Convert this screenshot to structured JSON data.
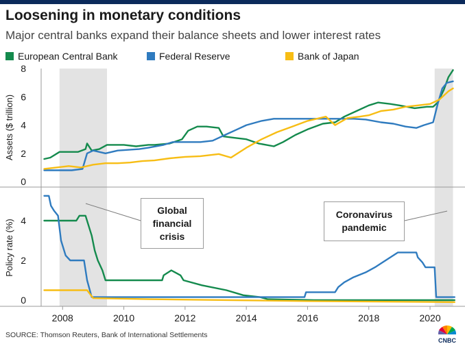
{
  "header": {
    "title": "Loosening in monetary conditions",
    "subtitle": "Major central banks expand their balance sheets and lower interest rates"
  },
  "legend": [
    {
      "name": "European Central Bank",
      "color": "#148a4d"
    },
    {
      "name": "Federal Reserve",
      "color": "#2f7bbf"
    },
    {
      "name": "Bank of Japan",
      "color": "#f7bd14"
    }
  ],
  "footer": {
    "source": "SOURCE: Thomson Reuters, Bank of International Settlements",
    "brand": "CNBC"
  },
  "chart_data": {
    "type": "line",
    "xlim": [
      2007.3,
      2020.85
    ],
    "x_ticks": [
      "2008",
      "2010",
      "2012",
      "2014",
      "2016",
      "2018",
      "2020"
    ],
    "shaded_periods": [
      {
        "label": "Global financial crisis",
        "start": 2007.9,
        "end": 2009.45
      },
      {
        "label": "Coronavirus pandemic",
        "start": 2020.15,
        "end": 2020.75
      }
    ],
    "annotations": [
      {
        "text": "Global\nfinancial\ncrisis",
        "period": "Global financial crisis"
      },
      {
        "text": "Coronavirus\npandemic",
        "period": "Coronavirus pandemic"
      }
    ],
    "panels": [
      {
        "ylabel": "Assets ($ trillion)",
        "ylim": [
          0,
          8
        ],
        "y_ticks": [
          "0",
          "2",
          "4",
          "6",
          "8"
        ],
        "series": [
          {
            "name": "European Central Bank",
            "color": "#148a4d",
            "points": [
              [
                2007.4,
                1.6
              ],
              [
                2007.6,
                1.7
              ],
              [
                2007.9,
                2.1
              ],
              [
                2008.3,
                2.1
              ],
              [
                2008.5,
                2.1
              ],
              [
                2008.75,
                2.3
              ],
              [
                2008.8,
                2.7
              ],
              [
                2008.95,
                2.2
              ],
              [
                2009.2,
                2.3
              ],
              [
                2009.45,
                2.6
              ],
              [
                2010,
                2.6
              ],
              [
                2010.4,
                2.5
              ],
              [
                2010.8,
                2.6
              ],
              [
                2011,
                2.6
              ],
              [
                2011.5,
                2.7
              ],
              [
                2011.9,
                3.0
              ],
              [
                2012.1,
                3.6
              ],
              [
                2012.4,
                3.9
              ],
              [
                2012.7,
                3.9
              ],
              [
                2013.1,
                3.8
              ],
              [
                2013.25,
                3.2
              ],
              [
                2013.6,
                3.1
              ],
              [
                2014,
                3.0
              ],
              [
                2014.4,
                2.7
              ],
              [
                2014.9,
                2.5
              ],
              [
                2015.2,
                2.8
              ],
              [
                2015.6,
                3.3
              ],
              [
                2016,
                3.7
              ],
              [
                2016.5,
                4.1
              ],
              [
                2016.9,
                4.2
              ],
              [
                2017.2,
                4.6
              ],
              [
                2017.6,
                5.0
              ],
              [
                2018,
                5.4
              ],
              [
                2018.3,
                5.6
              ],
              [
                2018.7,
                5.5
              ],
              [
                2019,
                5.4
              ],
              [
                2019.5,
                5.2
              ],
              [
                2019.9,
                5.3
              ],
              [
                2020.1,
                5.3
              ],
              [
                2020.25,
                5.6
              ],
              [
                2020.45,
                6.5
              ],
              [
                2020.6,
                7.4
              ],
              [
                2020.75,
                7.9
              ]
            ]
          },
          {
            "name": "Federal Reserve",
            "color": "#2f7bbf",
            "points": [
              [
                2007.4,
                0.8
              ],
              [
                2007.8,
                0.8
              ],
              [
                2008.3,
                0.8
              ],
              [
                2008.65,
                0.9
              ],
              [
                2008.8,
                2.0
              ],
              [
                2009,
                2.2
              ],
              [
                2009.4,
                2.0
              ],
              [
                2009.8,
                2.2
              ],
              [
                2010.5,
                2.3
              ],
              [
                2010.8,
                2.4
              ],
              [
                2011.3,
                2.6
              ],
              [
                2011.6,
                2.8
              ],
              [
                2012,
                2.8
              ],
              [
                2012.5,
                2.8
              ],
              [
                2012.9,
                2.9
              ],
              [
                2013.3,
                3.3
              ],
              [
                2013.7,
                3.7
              ],
              [
                2014,
                4.0
              ],
              [
                2014.5,
                4.3
              ],
              [
                2014.9,
                4.45
              ],
              [
                2015.5,
                4.45
              ],
              [
                2016,
                4.45
              ],
              [
                2016.5,
                4.45
              ],
              [
                2017,
                4.45
              ],
              [
                2017.5,
                4.45
              ],
              [
                2017.9,
                4.4
              ],
              [
                2018.4,
                4.2
              ],
              [
                2018.8,
                4.1
              ],
              [
                2019.2,
                3.9
              ],
              [
                2019.55,
                3.8
              ],
              [
                2019.8,
                4.0
              ],
              [
                2020.1,
                4.2
              ],
              [
                2020.25,
                5.5
              ],
              [
                2020.4,
                6.6
              ],
              [
                2020.55,
                7.0
              ],
              [
                2020.75,
                7.1
              ]
            ]
          },
          {
            "name": "Bank of Japan",
            "color": "#f7bd14",
            "points": [
              [
                2007.4,
                0.9
              ],
              [
                2007.8,
                1.0
              ],
              [
                2008.2,
                1.1
              ],
              [
                2008.6,
                1.0
              ],
              [
                2009,
                1.2
              ],
              [
                2009.4,
                1.3
              ],
              [
                2009.8,
                1.3
              ],
              [
                2010.2,
                1.35
              ],
              [
                2010.6,
                1.45
              ],
              [
                2011,
                1.5
              ],
              [
                2011.5,
                1.65
              ],
              [
                2012,
                1.75
              ],
              [
                2012.5,
                1.8
              ],
              [
                2013.1,
                1.95
              ],
              [
                2013.5,
                1.7
              ],
              [
                2014,
                2.4
              ],
              [
                2014.5,
                3.0
              ],
              [
                2015,
                3.5
              ],
              [
                2015.5,
                3.9
              ],
              [
                2016,
                4.3
              ],
              [
                2016.3,
                4.45
              ],
              [
                2016.6,
                4.6
              ],
              [
                2016.9,
                4.0
              ],
              [
                2017.3,
                4.5
              ],
              [
                2017.7,
                4.6
              ],
              [
                2018,
                4.7
              ],
              [
                2018.4,
                5.0
              ],
              [
                2018.8,
                5.1
              ],
              [
                2019.2,
                5.3
              ],
              [
                2019.6,
                5.4
              ],
              [
                2020,
                5.5
              ],
              [
                2020.3,
                5.8
              ],
              [
                2020.6,
                6.4
              ],
              [
                2020.75,
                6.6
              ]
            ]
          }
        ]
      },
      {
        "ylabel": "Policy rate (%)",
        "ylim": [
          -0.3,
          5.5
        ],
        "y_ticks": [
          "0",
          "2",
          "4"
        ],
        "series": [
          {
            "name": "European Central Bank",
            "color": "#148a4d",
            "points": [
              [
                2007.4,
                4.0
              ],
              [
                2008.45,
                4.0
              ],
              [
                2008.55,
                4.25
              ],
              [
                2008.75,
                4.25
              ],
              [
                2008.85,
                3.75
              ],
              [
                2008.95,
                3.25
              ],
              [
                2009.05,
                2.5
              ],
              [
                2009.15,
                2.0
              ],
              [
                2009.3,
                1.5
              ],
              [
                2009.4,
                1.0
              ],
              [
                2011.25,
                1.0
              ],
              [
                2011.3,
                1.25
              ],
              [
                2011.55,
                1.5
              ],
              [
                2011.85,
                1.25
              ],
              [
                2011.95,
                1.0
              ],
              [
                2012.55,
                0.75
              ],
              [
                2013.35,
                0.5
              ],
              [
                2013.9,
                0.25
              ],
              [
                2014.45,
                0.15
              ],
              [
                2014.7,
                0.05
              ],
              [
                2016.2,
                0.0
              ],
              [
                2020.8,
                0.0
              ]
            ]
          },
          {
            "name": "Federal Reserve",
            "color": "#2f7bbf",
            "points": [
              [
                2007.4,
                5.25
              ],
              [
                2007.55,
                5.25
              ],
              [
                2007.62,
                4.75
              ],
              [
                2007.72,
                4.5
              ],
              [
                2007.85,
                4.25
              ],
              [
                2007.95,
                3.0
              ],
              [
                2008.1,
                2.25
              ],
              [
                2008.25,
                2.0
              ],
              [
                2008.7,
                2.0
              ],
              [
                2008.8,
                1.0
              ],
              [
                2008.95,
                0.15
              ],
              [
                2015.9,
                0.15
              ],
              [
                2015.95,
                0.4
              ],
              [
                2016.9,
                0.4
              ],
              [
                2017,
                0.65
              ],
              [
                2017.2,
                0.9
              ],
              [
                2017.5,
                1.15
              ],
              [
                2017.9,
                1.4
              ],
              [
                2018.2,
                1.65
              ],
              [
                2018.45,
                1.9
              ],
              [
                2018.7,
                2.15
              ],
              [
                2018.95,
                2.4
              ],
              [
                2019.55,
                2.4
              ],
              [
                2019.6,
                2.15
              ],
              [
                2019.75,
                1.9
              ],
              [
                2019.85,
                1.65
              ],
              [
                2020.15,
                1.65
              ],
              [
                2020.2,
                0.15
              ],
              [
                2020.8,
                0.15
              ]
            ]
          },
          {
            "name": "Bank of Japan",
            "color": "#f7bd14",
            "points": [
              [
                2007.4,
                0.5
              ],
              [
                2008.8,
                0.5
              ],
              [
                2008.9,
                0.3
              ],
              [
                2009,
                0.1
              ],
              [
                2010.8,
                0.05
              ],
              [
                2016.05,
                -0.05
              ],
              [
                2020.8,
                -0.1
              ]
            ]
          }
        ]
      }
    ]
  }
}
